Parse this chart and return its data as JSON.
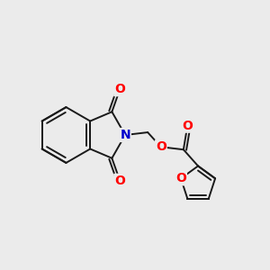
{
  "background_color": "#ebebeb",
  "bond_color": "#1a1a1a",
  "bond_width": 1.4,
  "atom_colors": {
    "O": "#ff0000",
    "N": "#0000cc"
  },
  "font_size": 10,
  "figsize": [
    3.0,
    3.0
  ],
  "dpi": 100
}
